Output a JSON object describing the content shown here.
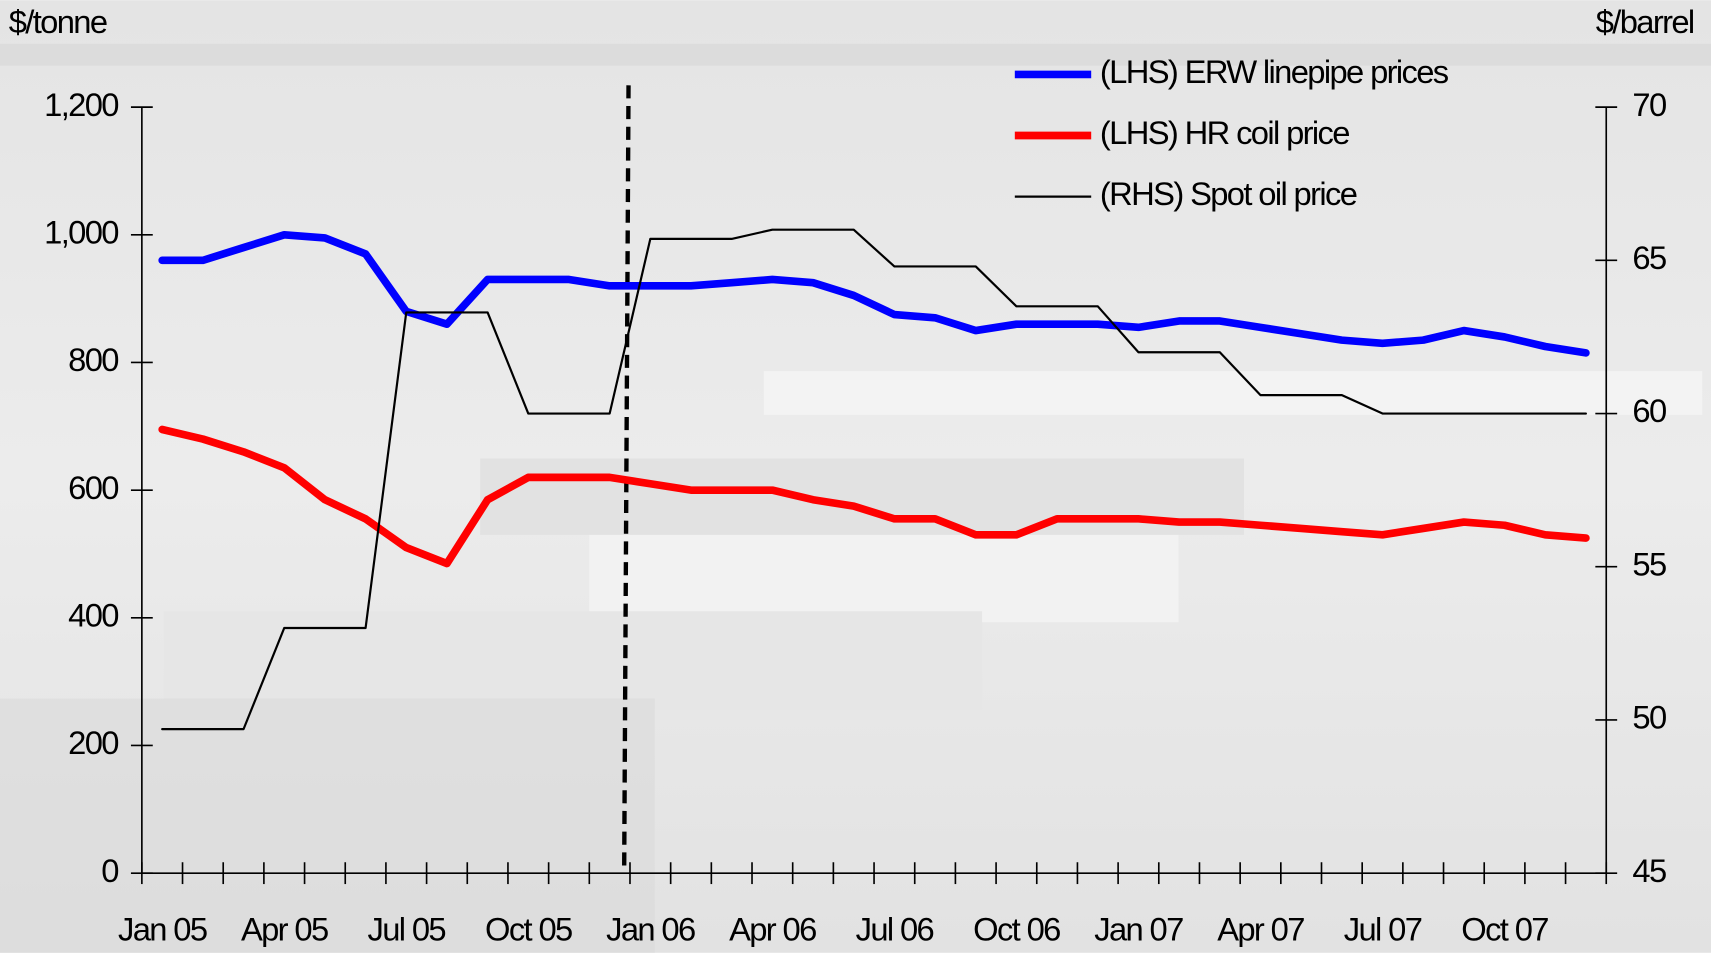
{
  "chart_data": {
    "type": "line",
    "ylabel": "$/tonne",
    "y2label": "$/barrel",
    "categories": [
      "Jan 05",
      null,
      null,
      "Apr 05",
      null,
      null,
      "Jul 05",
      null,
      null,
      "Oct 05",
      null,
      null,
      "Jan 06",
      null,
      null,
      "Apr 06",
      null,
      null,
      "Jul 06",
      null,
      null,
      "Oct 06",
      null,
      null,
      "Jan 07",
      null,
      null,
      "Apr 07",
      null,
      null,
      "Jul 07",
      null,
      null,
      "Oct 07",
      null,
      null
    ],
    "series": [
      {
        "name": "(LHS) ERW linepipe prices",
        "color": "#0000ff",
        "width": 7,
        "values": [
          960,
          960,
          980,
          1000,
          995,
          970,
          880,
          860,
          930,
          930,
          930,
          920,
          920,
          920,
          925,
          930,
          925,
          905,
          875,
          870,
          850,
          860,
          860,
          860,
          855,
          865,
          865,
          855,
          845,
          835,
          830,
          835,
          850,
          840,
          825,
          815
        ]
      },
      {
        "name": "(LHS) HR coil price",
        "color": "#ff0000",
        "width": 7,
        "values": [
          695,
          680,
          660,
          635,
          585,
          555,
          510,
          485,
          585,
          620,
          620,
          620,
          610,
          600,
          600,
          600,
          585,
          575,
          555,
          555,
          530,
          530,
          555,
          555,
          555,
          550,
          550,
          545,
          540,
          535,
          530,
          540,
          550,
          545,
          530,
          525
        ]
      },
      {
        "name": "(RHS) Spot oil price",
        "color": "#000000",
        "width": 2,
        "axis": "y2",
        "values": [
          49.7,
          49.7,
          49.7,
          53,
          53,
          53,
          63.3,
          63.3,
          63.3,
          60,
          60,
          60,
          65.7,
          65.7,
          65.7,
          66,
          66,
          66,
          64.8,
          64.8,
          64.8,
          63.5,
          63.5,
          63.5,
          62,
          62,
          62,
          60.6,
          60.6,
          60.6,
          60,
          60,
          60,
          60,
          60,
          60
        ]
      }
    ],
    "ylim": [
      0,
      1200
    ],
    "yticks": [
      0,
      200,
      400,
      600,
      800,
      {
        "value": 1000,
        "label": "1,000"
      },
      {
        "value": 1200,
        "label": "1,200"
      }
    ],
    "y2lim": [
      45,
      70
    ],
    "y2ticks": [
      45,
      50,
      55,
      60,
      65,
      70
    ]
  }
}
